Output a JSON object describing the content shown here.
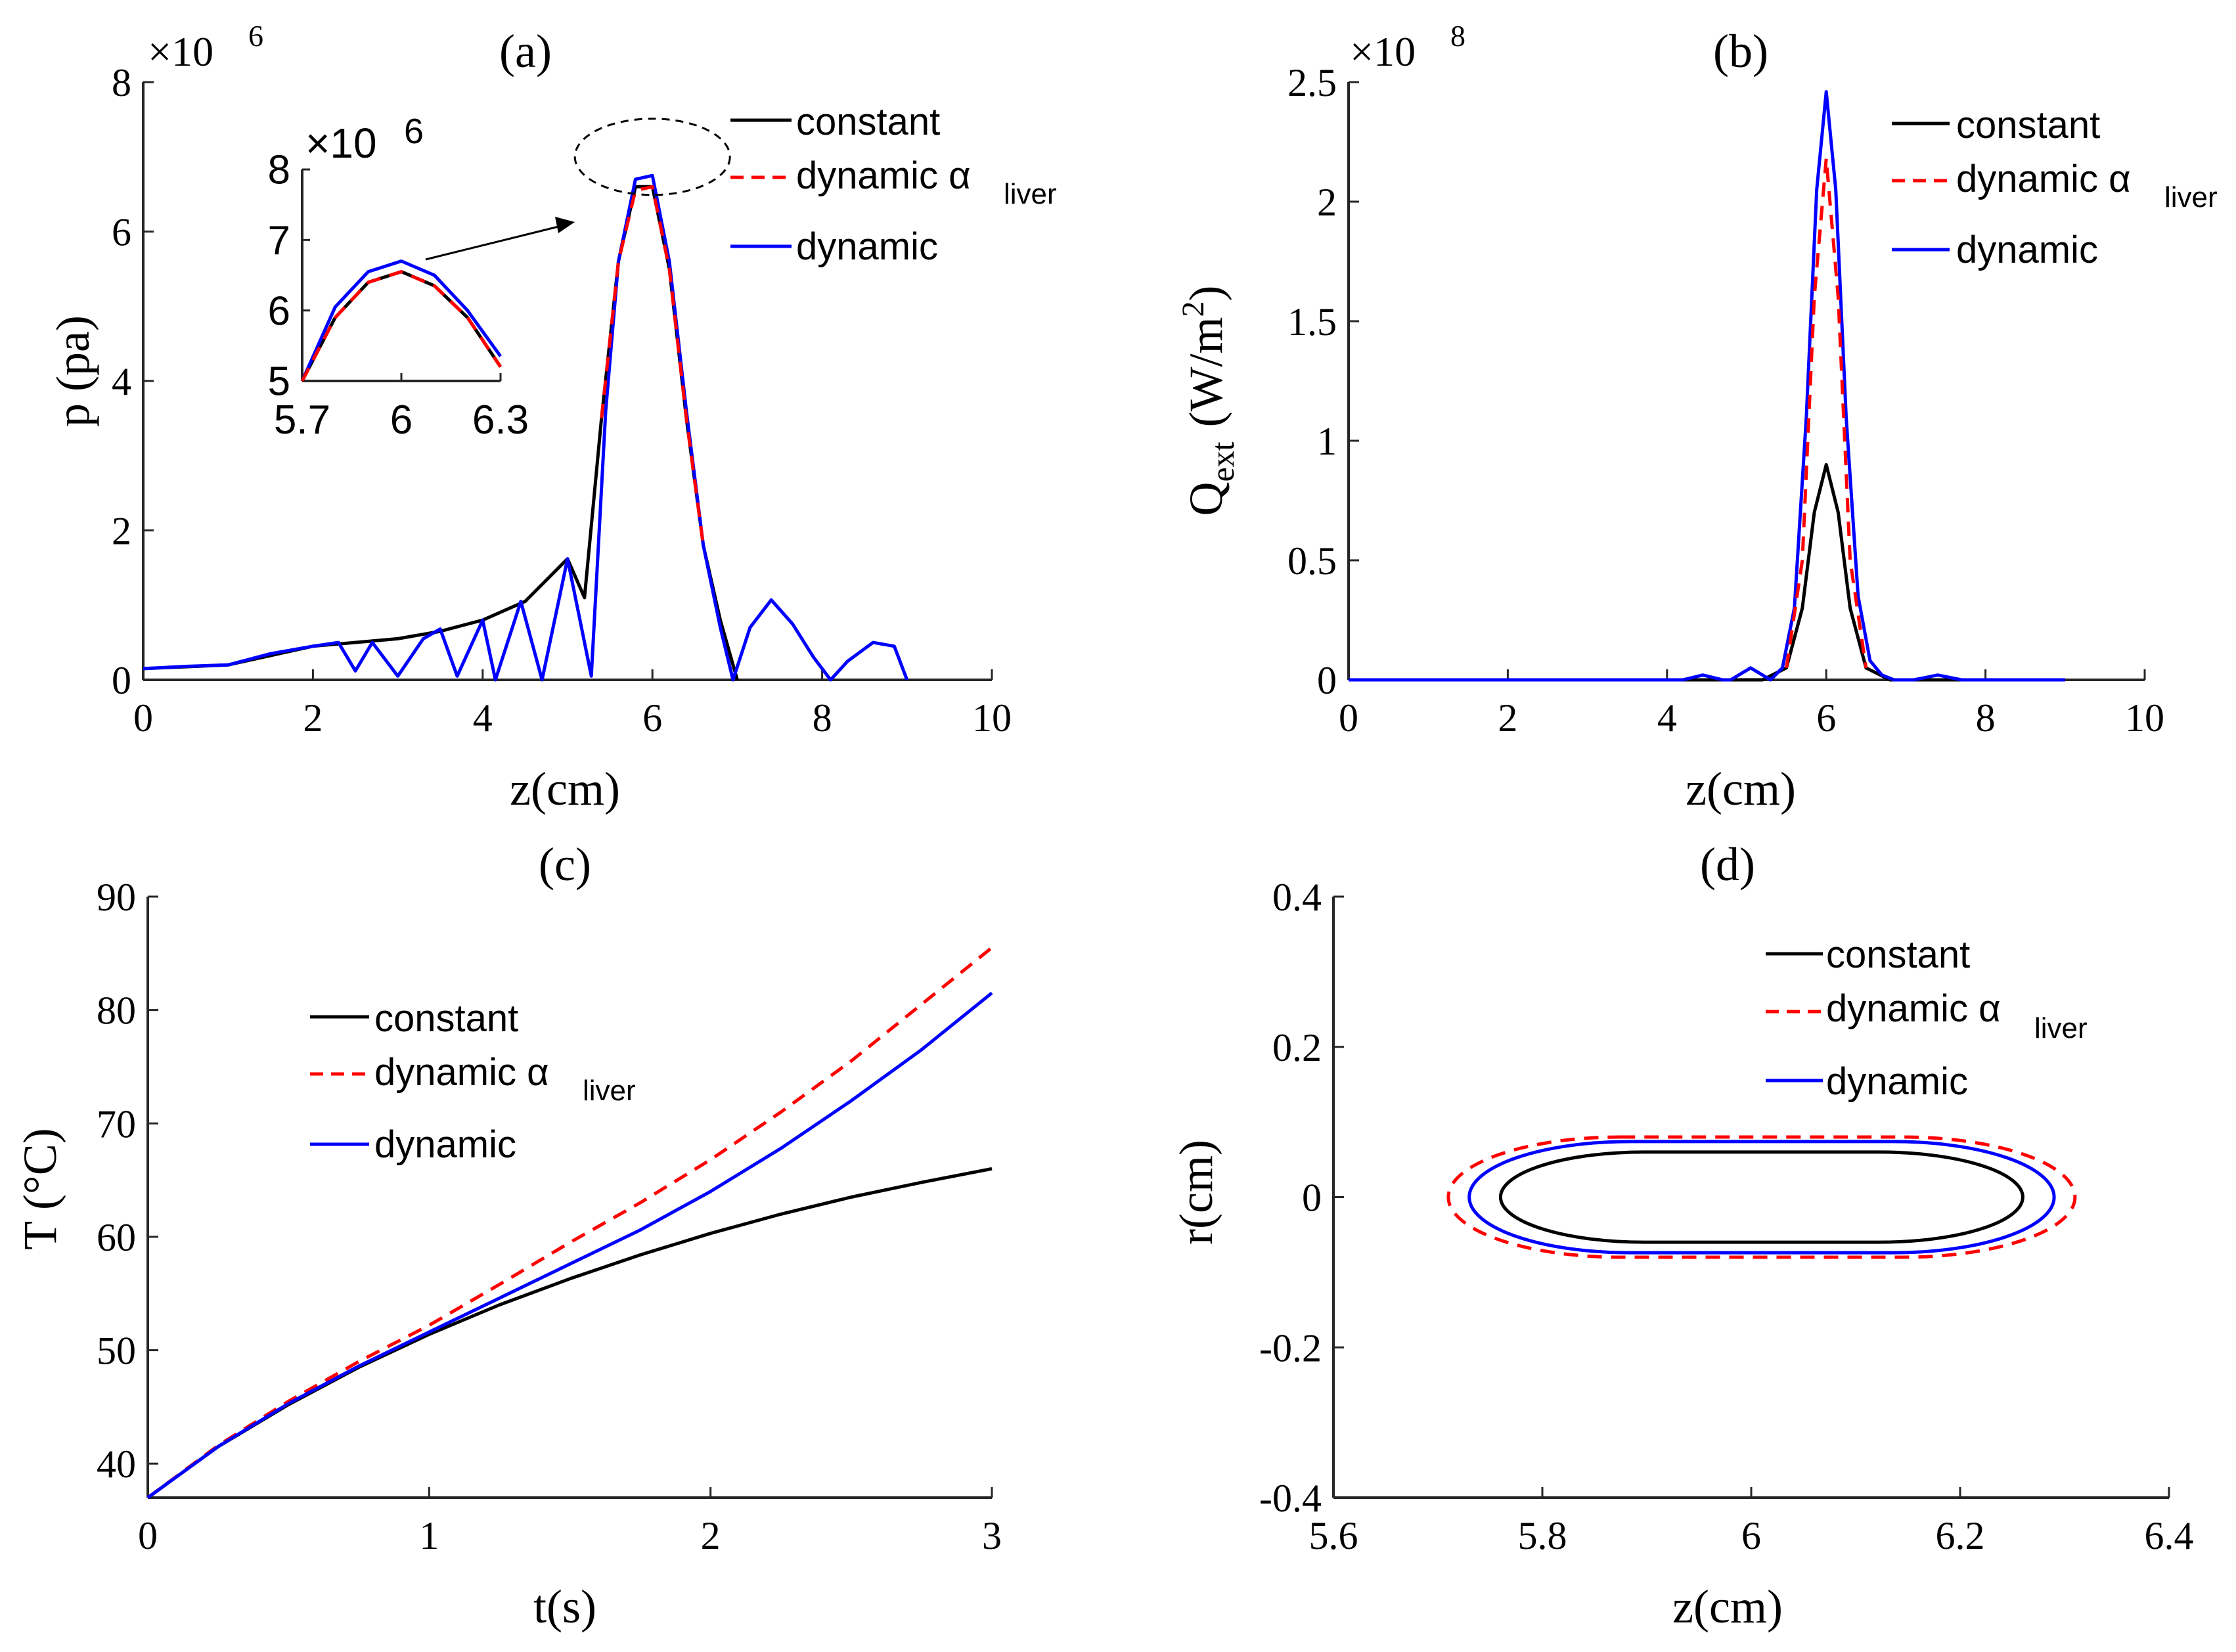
{
  "colors": {
    "constant": "#000000",
    "dynamic_alpha": "#ff0000",
    "dynamic": "#0000ff",
    "axis": "#262626"
  },
  "chart_data": [
    {
      "panel": "(a)",
      "type": "line",
      "title": "(a)",
      "xlabel": "z(cm)",
      "ylabel": "p (pa)",
      "exponent": "×10",
      "exponent_power": "6",
      "xlim": [
        0,
        10
      ],
      "ylim": [
        0,
        8
      ],
      "xticks": [
        0,
        2,
        4,
        6,
        8,
        10
      ],
      "yticks": [
        0,
        2,
        4,
        6,
        8
      ],
      "xticklabels": [
        "0",
        "2",
        "4",
        "6",
        "8",
        "10"
      ],
      "yticklabels": [
        "0",
        "2",
        "4",
        "6",
        "8"
      ],
      "legend": [
        "constant",
        "dynamic α",
        "liver",
        "dynamic"
      ],
      "series": [
        {
          "name": "constant",
          "style": "solid",
          "color": "#000000",
          "x": [
            0,
            1,
            2,
            3,
            3.5,
            4,
            4.5,
            5,
            5.2,
            5.4,
            5.6,
            5.8,
            6.0,
            6.2,
            6.4,
            6.6,
            6.8,
            7.0
          ],
          "y": [
            0.15,
            0.2,
            0.45,
            0.55,
            0.65,
            0.8,
            1.05,
            1.62,
            1.1,
            3.5,
            5.6,
            6.6,
            6.6,
            5.5,
            3.5,
            1.8,
            0.8,
            0.0
          ]
        },
        {
          "name": "dynamic alpha_liver",
          "style": "dashed",
          "color": "#ff0000",
          "x": [
            5.4,
            5.6,
            5.8,
            6.0,
            6.2,
            6.4,
            6.6
          ],
          "y": [
            3.5,
            5.6,
            6.55,
            6.6,
            5.5,
            3.5,
            1.8
          ]
        },
        {
          "name": "dynamic",
          "style": "solid",
          "color": "#0000ff",
          "x": [
            0,
            0.5,
            1.0,
            1.5,
            2.0,
            2.3,
            2.5,
            2.7,
            3.0,
            3.3,
            3.5,
            3.7,
            4.0,
            4.15,
            4.45,
            4.7,
            5.0,
            5.28,
            5.45,
            5.6,
            5.8,
            6.0,
            6.2,
            6.4,
            6.6,
            6.8,
            6.95,
            7.15,
            7.4,
            7.65,
            7.9,
            8.1,
            8.3,
            8.6,
            8.85,
            9.0
          ],
          "y": [
            0.15,
            0.18,
            0.2,
            0.35,
            0.45,
            0.5,
            0.12,
            0.5,
            0.05,
            0.55,
            0.68,
            0.05,
            0.8,
            0.0,
            1.05,
            0.0,
            1.62,
            0.05,
            3.6,
            5.6,
            6.7,
            6.75,
            5.6,
            3.6,
            1.8,
            0.7,
            0.0,
            0.7,
            1.07,
            0.75,
            0.3,
            0.0,
            0.25,
            0.5,
            0.45,
            0.0
          ]
        }
      ],
      "inset": {
        "xlim": [
          5.7,
          6.3
        ],
        "ylim": [
          5,
          8
        ],
        "xticks": [
          5.7,
          6,
          6.3
        ],
        "yticks": [
          5,
          6,
          7,
          8
        ],
        "xticklabels": [
          "5.7",
          "6",
          "6.3"
        ],
        "yticklabels": [
          "5",
          "6",
          "7",
          "8"
        ],
        "exponent": "×10",
        "exponent_power": "6",
        "series": [
          {
            "name": "constant",
            "x": [
              5.7,
              5.8,
              5.9,
              6.0,
              6.1,
              6.2,
              6.3
            ],
            "y": [
              5.0,
              5.9,
              6.4,
              6.55,
              6.35,
              5.9,
              5.2
            ]
          },
          {
            "name": "dynamic alpha_liver",
            "x": [
              5.7,
              5.8,
              5.9,
              6.0,
              6.1,
              6.2,
              6.3
            ],
            "y": [
              5.0,
              5.9,
              6.4,
              6.55,
              6.35,
              5.9,
              5.2
            ]
          },
          {
            "name": "dynamic",
            "x": [
              5.7,
              5.8,
              5.9,
              6.0,
              6.1,
              6.2,
              6.3
            ],
            "y": [
              5.0,
              6.05,
              6.55,
              6.7,
              6.5,
              6.0,
              5.35
            ]
          }
        ]
      }
    },
    {
      "panel": "(b)",
      "type": "line",
      "title": "(b)",
      "xlabel": "z(cm)",
      "ylabel": "Q",
      "ylabel_sub": "ext",
      "ylabel_unit": "(W/m",
      "ylabel_unit_sup": "2",
      "ylabel_unit_end": ")",
      "exponent": "×10",
      "exponent_power": "8",
      "xlim": [
        0,
        10
      ],
      "ylim": [
        0,
        2.5
      ],
      "xticks": [
        0,
        2,
        4,
        6,
        8,
        10
      ],
      "yticks": [
        0,
        0.5,
        1,
        1.5,
        2,
        2.5
      ],
      "xticklabels": [
        "0",
        "2",
        "4",
        "6",
        "8",
        "10"
      ],
      "yticklabels": [
        "0",
        "0.5",
        "1",
        "1.5",
        "2",
        "2.5"
      ],
      "legend": [
        "constant",
        "dynamic α",
        "liver",
        "dynamic"
      ],
      "series": [
        {
          "name": "constant",
          "style": "solid",
          "color": "#000000",
          "x": [
            0,
            5.2,
            5.5,
            5.7,
            5.85,
            6.0,
            6.15,
            6.3,
            6.5,
            6.8,
            9.0
          ],
          "y": [
            0,
            0,
            0.05,
            0.3,
            0.7,
            0.9,
            0.7,
            0.3,
            0.05,
            0,
            0
          ]
        },
        {
          "name": "dynamic alpha_liver",
          "style": "dashed",
          "color": "#ff0000",
          "x": [
            5.5,
            5.7,
            5.85,
            6.0,
            6.15,
            6.3,
            6.5
          ],
          "y": [
            0.05,
            0.5,
            1.6,
            2.18,
            1.6,
            0.5,
            0.05
          ]
        },
        {
          "name": "dynamic",
          "style": "solid",
          "color": "#0000ff",
          "x": [
            0,
            4.0,
            4.2,
            4.45,
            4.7,
            4.8,
            5.05,
            5.3,
            5.45,
            5.6,
            5.75,
            5.88,
            6.0,
            6.12,
            6.25,
            6.4,
            6.55,
            6.7,
            6.85,
            7.1,
            7.4,
            7.7,
            8.0,
            9.0
          ],
          "y": [
            0,
            0,
            0.0,
            0.02,
            0.0,
            0.0,
            0.05,
            0.0,
            0.05,
            0.3,
            1.1,
            2.05,
            2.46,
            2.05,
            1.1,
            0.35,
            0.08,
            0.02,
            0.0,
            0.0,
            0.02,
            0.0,
            0.0,
            0.0
          ]
        }
      ]
    },
    {
      "panel": "(c)",
      "type": "line",
      "title": "(c)",
      "xlabel": "t(s)",
      "ylabel": "T (°C)",
      "xlim": [
        0,
        3
      ],
      "ylim": [
        37,
        90
      ],
      "xticks": [
        0,
        1,
        2,
        3
      ],
      "yticks": [
        40,
        50,
        60,
        70,
        80,
        90
      ],
      "xticklabels": [
        "0",
        "1",
        "2",
        "3"
      ],
      "yticklabels": [
        "40",
        "50",
        "60",
        "70",
        "80",
        "90"
      ],
      "legend": [
        "constant",
        "dynamic α",
        "liver",
        "dynamic"
      ],
      "series": [
        {
          "name": "constant",
          "style": "solid",
          "color": "#000000",
          "x": [
            0,
            0.25,
            0.5,
            0.75,
            1.0,
            1.25,
            1.5,
            1.75,
            2.0,
            2.25,
            2.5,
            2.75,
            3.0
          ],
          "y": [
            37,
            41.5,
            45.2,
            48.5,
            51.4,
            54.0,
            56.3,
            58.4,
            60.3,
            62.0,
            63.5,
            64.8,
            66.0
          ]
        },
        {
          "name": "dynamic alpha_liver",
          "style": "dashed",
          "color": "#ff0000",
          "x": [
            0,
            0.25,
            0.5,
            0.75,
            1.0,
            1.25,
            1.5,
            1.75,
            2.0,
            2.25,
            2.5,
            2.75,
            3.0
          ],
          "y": [
            37,
            41.6,
            45.5,
            49.0,
            52.2,
            55.8,
            59.5,
            63.0,
            66.8,
            71.0,
            75.5,
            80.5,
            85.5
          ]
        },
        {
          "name": "dynamic",
          "style": "solid",
          "color": "#0000ff",
          "x": [
            0,
            0.25,
            0.5,
            0.75,
            1.0,
            1.25,
            1.5,
            1.75,
            2.0,
            2.25,
            2.5,
            2.75,
            3.0
          ],
          "y": [
            37,
            41.5,
            45.3,
            48.6,
            51.6,
            54.6,
            57.6,
            60.6,
            64.0,
            67.8,
            72.0,
            76.5,
            81.5
          ]
        }
      ]
    },
    {
      "panel": "(d)",
      "type": "line",
      "title": "(d)",
      "xlabel": "z(cm)",
      "ylabel": "r(cm)",
      "xlim": [
        5.6,
        6.4
      ],
      "ylim": [
        -0.4,
        0.4
      ],
      "xticks": [
        5.6,
        5.8,
        6,
        6.2,
        6.4
      ],
      "yticks": [
        -0.4,
        -0.2,
        0,
        0.2,
        0.4
      ],
      "xticklabels": [
        "5.6",
        "5.8",
        "6",
        "6.2",
        "6.4"
      ],
      "yticklabels": [
        "-0.4",
        "-0.2",
        "0",
        "0.2",
        "0.4"
      ],
      "legend": [
        "constant",
        "dynamic α",
        "liver",
        "dynamic"
      ],
      "series": [
        {
          "name": "constant",
          "style": "solid",
          "color": "#000000",
          "shape": "ellipse",
          "z_min": 5.76,
          "z_max": 6.26,
          "r_max": 0.06
        },
        {
          "name": "dynamic alpha_liver",
          "style": "dashed",
          "color": "#ff0000",
          "shape": "ellipse",
          "z_min": 5.71,
          "z_max": 6.31,
          "r_max": 0.08
        },
        {
          "name": "dynamic",
          "style": "solid",
          "color": "#0000ff",
          "shape": "ellipse",
          "z_min": 5.73,
          "z_max": 6.29,
          "r_max": 0.074
        }
      ]
    }
  ]
}
